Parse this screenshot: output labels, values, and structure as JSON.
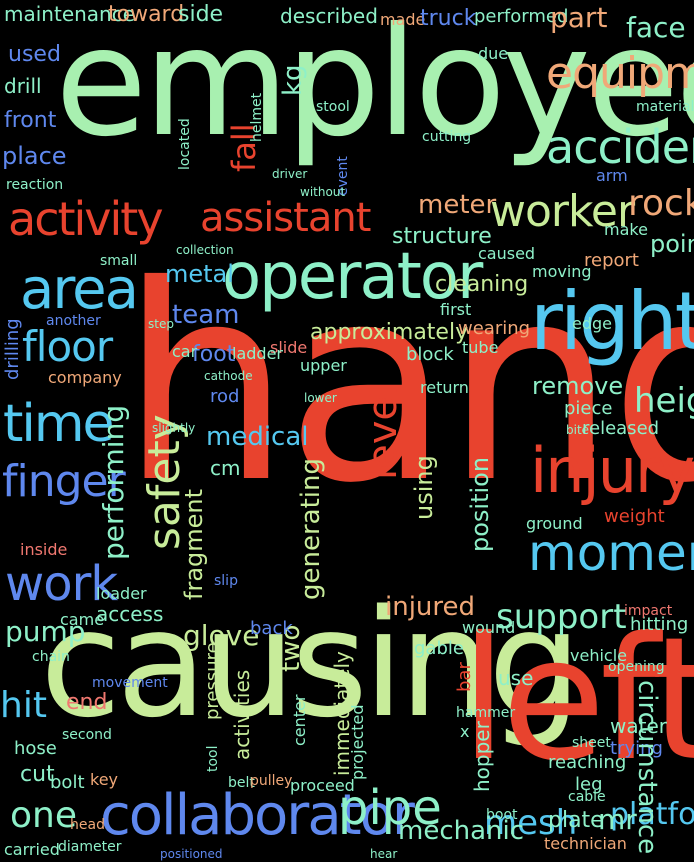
{
  "palette": {
    "background": "#000000",
    "green": "#a8f0b0",
    "lime": "#c8ec9a",
    "red": "#e8432e",
    "orange": "#f0a878",
    "cyan": "#55c8f0",
    "blue": "#5f88ee",
    "purple": "#7a3cf0",
    "teal": "#8ef0c8",
    "pink": "#f07870"
  },
  "words": [
    {
      "text": "hand",
      "color": "red"
    },
    {
      "text": "employee",
      "color": "green"
    },
    {
      "text": "causing",
      "color": "lime"
    },
    {
      "text": "left",
      "color": "red"
    },
    {
      "text": "operator",
      "color": "teal"
    },
    {
      "text": "right",
      "color": "cyan"
    },
    {
      "text": "moment",
      "color": "cyan"
    },
    {
      "text": "injury",
      "color": "red"
    },
    {
      "text": "collaborator",
      "color": "blue"
    },
    {
      "text": "time",
      "color": "cyan"
    },
    {
      "text": "work",
      "color": "blue"
    },
    {
      "text": "activity",
      "color": "red"
    },
    {
      "text": "assistant",
      "color": "red"
    },
    {
      "text": "worker",
      "color": "lime"
    },
    {
      "text": "accident",
      "color": "teal"
    },
    {
      "text": "equipment",
      "color": "orange"
    },
    {
      "text": "area",
      "color": "cyan"
    },
    {
      "text": "floor",
      "color": "cyan"
    },
    {
      "text": "finger",
      "color": "blue"
    },
    {
      "text": "pipe",
      "color": "teal"
    },
    {
      "text": "support",
      "color": "teal"
    },
    {
      "text": "safety",
      "color": "lime"
    },
    {
      "text": "medical",
      "color": "cyan"
    },
    {
      "text": "rock",
      "color": "orange"
    },
    {
      "text": "fall",
      "color": "red"
    },
    {
      "text": "level",
      "color": "red"
    },
    {
      "text": "glove",
      "color": "lime"
    },
    {
      "text": "mesh",
      "color": "cyan"
    },
    {
      "text": "one",
      "color": "teal"
    },
    {
      "text": "approximately",
      "color": "lime"
    },
    {
      "text": "performing",
      "color": "teal"
    },
    {
      "text": "generating",
      "color": "lime"
    },
    {
      "text": "height",
      "color": "teal"
    },
    {
      "text": "platform",
      "color": "cyan"
    },
    {
      "text": "mechanic",
      "color": "teal"
    },
    {
      "text": "injured",
      "color": "orange"
    },
    {
      "text": "two",
      "color": "lime"
    },
    {
      "text": "hit",
      "color": "cyan"
    },
    {
      "text": "pump",
      "color": "teal"
    },
    {
      "text": "metal",
      "color": "cyan"
    },
    {
      "text": "meter",
      "color": "orange"
    },
    {
      "text": "structure",
      "color": "teal"
    },
    {
      "text": "cleaning",
      "color": "lime"
    },
    {
      "text": "remove",
      "color": "teal"
    },
    {
      "text": "point",
      "color": "teal"
    },
    {
      "text": "team",
      "color": "blue"
    },
    {
      "text": "foot",
      "color": "blue"
    },
    {
      "text": "position",
      "color": "teal"
    },
    {
      "text": "using",
      "color": "lime"
    },
    {
      "text": "fragment",
      "color": "lime"
    },
    {
      "text": "maintenance",
      "color": "teal"
    },
    {
      "text": "toward",
      "color": "orange"
    },
    {
      "text": "side",
      "color": "teal"
    },
    {
      "text": "described",
      "color": "teal"
    },
    {
      "text": "made",
      "color": "orange"
    },
    {
      "text": "truck",
      "color": "blue"
    },
    {
      "text": "performed",
      "color": "teal"
    },
    {
      "text": "part",
      "color": "orange"
    },
    {
      "text": "face",
      "color": "teal"
    },
    {
      "text": "kg",
      "color": "teal"
    },
    {
      "text": "used",
      "color": "blue"
    },
    {
      "text": "front",
      "color": "blue"
    },
    {
      "text": "place",
      "color": "blue"
    },
    {
      "text": "drill",
      "color": "teal"
    },
    {
      "text": "activities",
      "color": "lime"
    },
    {
      "text": "pressure",
      "color": "lime"
    },
    {
      "text": "access",
      "color": "teal"
    },
    {
      "text": "back",
      "color": "blue"
    },
    {
      "text": "hose",
      "color": "teal"
    },
    {
      "text": "cut",
      "color": "teal"
    },
    {
      "text": "bolt",
      "color": "teal"
    },
    {
      "text": "key",
      "color": "orange"
    },
    {
      "text": "end",
      "color": "pink"
    },
    {
      "text": "company",
      "color": "orange"
    },
    {
      "text": "inside",
      "color": "pink"
    },
    {
      "text": "came",
      "color": "teal"
    },
    {
      "text": "wearing",
      "color": "orange"
    },
    {
      "text": "tube",
      "color": "teal"
    },
    {
      "text": "block",
      "color": "teal"
    },
    {
      "text": "released",
      "color": "teal"
    },
    {
      "text": "piece",
      "color": "teal"
    },
    {
      "text": "weight",
      "color": "red"
    },
    {
      "text": "water",
      "color": "teal"
    },
    {
      "text": "trying",
      "color": "blue"
    },
    {
      "text": "reaching",
      "color": "teal"
    },
    {
      "text": "leg",
      "color": "teal"
    },
    {
      "text": "plate",
      "color": "teal"
    },
    {
      "text": "mr",
      "color": "teal"
    },
    {
      "text": "hopper",
      "color": "teal"
    },
    {
      "text": "hitting",
      "color": "teal"
    },
    {
      "text": "vehicle",
      "color": "teal"
    },
    {
      "text": "proceed",
      "color": "teal"
    },
    {
      "text": "center",
      "color": "teal"
    },
    {
      "text": "immediately",
      "color": "lime"
    },
    {
      "text": "report",
      "color": "orange"
    },
    {
      "text": "caused",
      "color": "teal"
    },
    {
      "text": "moving",
      "color": "teal"
    },
    {
      "text": "edge",
      "color": "teal"
    },
    {
      "text": "ground",
      "color": "teal"
    },
    {
      "text": "cm",
      "color": "teal"
    },
    {
      "text": "rod",
      "color": "blue"
    },
    {
      "text": "car",
      "color": "teal"
    },
    {
      "text": "slide",
      "color": "pink"
    },
    {
      "text": "upper",
      "color": "teal"
    },
    {
      "text": "ladder",
      "color": "teal"
    },
    {
      "text": "first",
      "color": "teal"
    },
    {
      "text": "return",
      "color": "teal"
    },
    {
      "text": "bar",
      "color": "red"
    },
    {
      "text": "use",
      "color": "teal"
    },
    {
      "text": "gable",
      "color": "teal"
    },
    {
      "text": "circumstance",
      "color": "teal"
    },
    {
      "text": "wound",
      "color": "teal"
    },
    {
      "text": "diameter",
      "color": "teal"
    },
    {
      "text": "carried",
      "color": "teal"
    },
    {
      "text": "technician",
      "color": "orange"
    },
    {
      "text": "head",
      "color": "orange"
    },
    {
      "text": "loader",
      "color": "teal"
    },
    {
      "text": "small",
      "color": "teal"
    },
    {
      "text": "arm",
      "color": "blue"
    },
    {
      "text": "make",
      "color": "teal"
    },
    {
      "text": "drilling",
      "color": "blue"
    },
    {
      "text": "helmet",
      "color": "teal"
    },
    {
      "text": "due",
      "color": "teal"
    },
    {
      "text": "located",
      "color": "teal"
    },
    {
      "text": "material",
      "color": "teal"
    },
    {
      "text": "cutting",
      "color": "teal"
    },
    {
      "text": "event",
      "color": "blue"
    },
    {
      "text": "without",
      "color": "teal"
    },
    {
      "text": "driver",
      "color": "teal"
    },
    {
      "text": "lower",
      "color": "teal"
    },
    {
      "text": "x",
      "color": "teal"
    },
    {
      "text": "hammer",
      "color": "teal"
    },
    {
      "text": "movement",
      "color": "blue"
    },
    {
      "text": "second",
      "color": "teal"
    },
    {
      "text": "slightly",
      "color": "teal"
    },
    {
      "text": "cathode",
      "color": "teal"
    },
    {
      "text": "another",
      "color": "blue"
    },
    {
      "text": "reaction",
      "color": "teal"
    },
    {
      "text": "projected",
      "color": "teal"
    },
    {
      "text": "sheet",
      "color": "teal"
    },
    {
      "text": "opening",
      "color": "teal"
    },
    {
      "text": "stool",
      "color": "teal"
    },
    {
      "text": "collection",
      "color": "teal"
    },
    {
      "text": "slip",
      "color": "blue"
    },
    {
      "text": "belt",
      "color": "teal"
    },
    {
      "text": "pulley",
      "color": "orange"
    },
    {
      "text": "impact",
      "color": "pink"
    },
    {
      "text": "cable",
      "color": "teal"
    },
    {
      "text": "tool",
      "color": "teal"
    },
    {
      "text": "chain",
      "color": "teal"
    },
    {
      "text": "positioned",
      "color": "blue"
    },
    {
      "text": "boot",
      "color": "teal"
    },
    {
      "text": "bite",
      "color": "teal"
    },
    {
      "text": "step",
      "color": "teal"
    },
    {
      "text": "hear",
      "color": "teal"
    }
  ]
}
